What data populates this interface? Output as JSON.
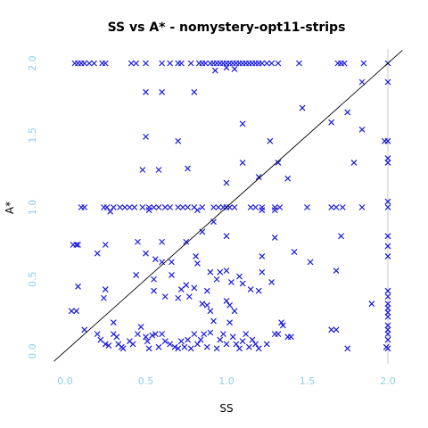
{
  "chart_data": {
    "type": "scatter",
    "title": "SS vs A* - nomystery-opt11-strips",
    "xlabel": "SS",
    "ylabel": "A*",
    "xlim": [
      0,
      2
    ],
    "ylim": [
      0,
      2
    ],
    "xticks": [
      "0.0",
      "0.5",
      "1.0",
      "1.5",
      "2.0"
    ],
    "yticks": [
      "0.0",
      "0.5",
      "1.0",
      "1.5",
      "2.0"
    ],
    "marker": "x",
    "colors": {
      "points": "#1a1adb",
      "ticks": "#8ecfe8",
      "diagonal": "#000000",
      "right_edge": "#c8c8c8"
    },
    "reference_line": "y = x",
    "points": [
      [
        0.06,
        2.0
      ],
      [
        0.08,
        2.0
      ],
      [
        0.1,
        2.0
      ],
      [
        0.12,
        2.0
      ],
      [
        0.15,
        2.0
      ],
      [
        0.18,
        2.0
      ],
      [
        0.23,
        2.0
      ],
      [
        0.25,
        2.0
      ],
      [
        0.41,
        2.0
      ],
      [
        0.44,
        2.0
      ],
      [
        0.5,
        2.0
      ],
      [
        0.6,
        2.0
      ],
      [
        0.65,
        2.0
      ],
      [
        0.7,
        2.0
      ],
      [
        0.72,
        2.0
      ],
      [
        0.78,
        2.0
      ],
      [
        0.83,
        2.0
      ],
      [
        0.85,
        2.0
      ],
      [
        0.87,
        2.0
      ],
      [
        0.9,
        2.0
      ],
      [
        0.92,
        2.0
      ],
      [
        0.94,
        2.0
      ],
      [
        0.96,
        2.0
      ],
      [
        0.98,
        2.0
      ],
      [
        1.0,
        2.0
      ],
      [
        1.02,
        2.0
      ],
      [
        1.04,
        2.0
      ],
      [
        1.06,
        2.0
      ],
      [
        1.08,
        2.0
      ],
      [
        1.1,
        2.0
      ],
      [
        1.12,
        2.0
      ],
      [
        1.14,
        2.0
      ],
      [
        1.16,
        2.0
      ],
      [
        1.18,
        2.0
      ],
      [
        1.2,
        2.0
      ],
      [
        1.22,
        2.0
      ],
      [
        1.25,
        2.0
      ],
      [
        1.28,
        2.0
      ],
      [
        1.32,
        2.0
      ],
      [
        1.45,
        2.0
      ],
      [
        1.69,
        2.0
      ],
      [
        1.71,
        2.0
      ],
      [
        1.73,
        2.0
      ],
      [
        1.85,
        2.0
      ],
      [
        2.0,
        2.0
      ],
      [
        0.5,
        1.8
      ],
      [
        0.6,
        1.8
      ],
      [
        0.8,
        1.8
      ],
      [
        0.93,
        1.95
      ],
      [
        1.0,
        1.97
      ],
      [
        1.05,
        1.96
      ],
      [
        1.84,
        1.87
      ],
      [
        2.0,
        1.87
      ],
      [
        1.47,
        1.69
      ],
      [
        1.75,
        1.66
      ],
      [
        1.65,
        1.59
      ],
      [
        1.84,
        1.54
      ],
      [
        1.1,
        1.58
      ],
      [
        0.5,
        1.49
      ],
      [
        0.7,
        1.46
      ],
      [
        1.27,
        1.46
      ],
      [
        1.98,
        1.46
      ],
      [
        2.0,
        1.46
      ],
      [
        0.76,
        1.27
      ],
      [
        0.48,
        1.26
      ],
      [
        0.58,
        1.26
      ],
      [
        1.79,
        1.31
      ],
      [
        1.32,
        1.31
      ],
      [
        1.1,
        1.31
      ],
      [
        2.0,
        1.34
      ],
      [
        2.0,
        1.31
      ],
      [
        1.2,
        1.21
      ],
      [
        1.38,
        1.2
      ],
      [
        1.0,
        1.17
      ],
      [
        0.1,
        1.0
      ],
      [
        0.12,
        1.0
      ],
      [
        0.24,
        1.0
      ],
      [
        0.26,
        1.0
      ],
      [
        0.3,
        1.0
      ],
      [
        0.34,
        1.0
      ],
      [
        0.37,
        1.0
      ],
      [
        0.4,
        1.0
      ],
      [
        0.43,
        1.0
      ],
      [
        0.48,
        1.0
      ],
      [
        0.52,
        1.0
      ],
      [
        0.55,
        1.0
      ],
      [
        0.58,
        1.0
      ],
      [
        0.62,
        1.0
      ],
      [
        0.65,
        1.0
      ],
      [
        0.7,
        1.0
      ],
      [
        0.73,
        1.0
      ],
      [
        0.76,
        1.0
      ],
      [
        0.8,
        1.0
      ],
      [
        0.85,
        1.0
      ],
      [
        0.92,
        1.0
      ],
      [
        0.95,
        1.0
      ],
      [
        0.98,
        1.0
      ],
      [
        1.0,
        1.0
      ],
      [
        1.02,
        1.0
      ],
      [
        1.05,
        1.0
      ],
      [
        1.15,
        1.0
      ],
      [
        1.18,
        1.0
      ],
      [
        1.22,
        1.0
      ],
      [
        1.3,
        1.0
      ],
      [
        1.33,
        1.0
      ],
      [
        1.5,
        1.0
      ],
      [
        1.65,
        1.0
      ],
      [
        1.68,
        1.0
      ],
      [
        1.72,
        1.0
      ],
      [
        1.84,
        1.0
      ],
      [
        2.0,
        1.0
      ],
      [
        0.28,
        0.97
      ],
      [
        0.52,
        0.98
      ],
      [
        0.82,
        0.98
      ],
      [
        1.22,
        0.98
      ],
      [
        1.3,
        0.98
      ],
      [
        2.0,
        1.04
      ],
      [
        0.05,
        0.74
      ],
      [
        0.07,
        0.74
      ],
      [
        0.08,
        0.74
      ],
      [
        0.25,
        0.74
      ],
      [
        0.45,
        0.76
      ],
      [
        0.6,
        0.76
      ],
      [
        0.2,
        0.68
      ],
      [
        0.5,
        0.68
      ],
      [
        0.56,
        0.64
      ],
      [
        0.6,
        0.62
      ],
      [
        0.66,
        0.62
      ],
      [
        0.75,
        0.76
      ],
      [
        0.81,
        0.66
      ],
      [
        0.85,
        0.83
      ],
      [
        0.92,
        0.9
      ],
      [
        1.0,
        0.8
      ],
      [
        1.22,
        0.66
      ],
      [
        1.3,
        0.79
      ],
      [
        1.42,
        0.69
      ],
      [
        1.52,
        0.62
      ],
      [
        1.71,
        0.8
      ],
      [
        2.0,
        0.8
      ],
      [
        2.0,
        0.73
      ],
      [
        2.0,
        0.66
      ],
      [
        0.08,
        0.45
      ],
      [
        0.04,
        0.28
      ],
      [
        0.07,
        0.28
      ],
      [
        0.25,
        0.43
      ],
      [
        0.24,
        0.37
      ],
      [
        0.44,
        0.53
      ],
      [
        0.55,
        0.5
      ],
      [
        0.66,
        0.53
      ],
      [
        0.72,
        0.43
      ],
      [
        0.75,
        0.46
      ],
      [
        0.8,
        0.44
      ],
      [
        0.82,
        0.61
      ],
      [
        0.88,
        0.42
      ],
      [
        0.9,
        0.55
      ],
      [
        0.94,
        0.5
      ],
      [
        0.96,
        0.55
      ],
      [
        1.0,
        0.56
      ],
      [
        1.03,
        0.48
      ],
      [
        1.08,
        0.52
      ],
      [
        1.1,
        0.47
      ],
      [
        1.15,
        0.43
      ],
      [
        1.2,
        0.42
      ],
      [
        1.22,
        0.55
      ],
      [
        1.28,
        0.48
      ],
      [
        1.0,
        0.35
      ],
      [
        1.02,
        0.32
      ],
      [
        1.05,
        0.28
      ],
      [
        0.85,
        0.33
      ],
      [
        0.88,
        0.32
      ],
      [
        0.9,
        0.28
      ],
      [
        0.77,
        0.38
      ],
      [
        0.7,
        0.37
      ],
      [
        0.62,
        0.38
      ],
      [
        0.55,
        0.42
      ],
      [
        1.3,
        0.12
      ],
      [
        1.32,
        0.12
      ],
      [
        1.68,
        0.56
      ],
      [
        1.9,
        0.33
      ],
      [
        2.0,
        0.42
      ],
      [
        2.0,
        0.38
      ],
      [
        2.0,
        0.33
      ],
      [
        2.0,
        0.3
      ],
      [
        2.0,
        0.27
      ],
      [
        2.0,
        0.24
      ],
      [
        0.12,
        0.15
      ],
      [
        0.2,
        0.12
      ],
      [
        0.22,
        0.08
      ],
      [
        0.25,
        0.05
      ],
      [
        0.27,
        0.04
      ],
      [
        0.3,
        0.12
      ],
      [
        0.3,
        0.2
      ],
      [
        0.32,
        0.1
      ],
      [
        0.33,
        0.05
      ],
      [
        0.35,
        0.03
      ],
      [
        0.36,
        0.02
      ],
      [
        0.4,
        0.07
      ],
      [
        0.42,
        0.05
      ],
      [
        0.45,
        0.12
      ],
      [
        0.47,
        0.17
      ],
      [
        0.5,
        0.1
      ],
      [
        0.51,
        0.07
      ],
      [
        0.52,
        0.02
      ],
      [
        0.54,
        0.11
      ],
      [
        0.56,
        0.12
      ],
      [
        0.58,
        0.03
      ],
      [
        0.6,
        0.12
      ],
      [
        0.62,
        0.07
      ],
      [
        0.65,
        0.05
      ],
      [
        0.68,
        0.03
      ],
      [
        0.7,
        0.02
      ],
      [
        0.72,
        0.07
      ],
      [
        0.74,
        0.03
      ],
      [
        0.76,
        0.08
      ],
      [
        0.78,
        0.02
      ],
      [
        0.8,
        0.12
      ],
      [
        0.82,
        0.05
      ],
      [
        0.84,
        0.08
      ],
      [
        0.86,
        0.12
      ],
      [
        0.88,
        0.03
      ],
      [
        0.9,
        0.13
      ],
      [
        0.92,
        0.21
      ],
      [
        0.94,
        0.02
      ],
      [
        0.96,
        0.08
      ],
      [
        0.98,
        0.12
      ],
      [
        1.0,
        0.05
      ],
      [
        1.02,
        0.2
      ],
      [
        1.04,
        0.1
      ],
      [
        1.06,
        0.05
      ],
      [
        1.08,
        0.02
      ],
      [
        1.1,
        0.07
      ],
      [
        1.12,
        0.12
      ],
      [
        1.14,
        0.03
      ],
      [
        1.16,
        0.08
      ],
      [
        1.18,
        0.05
      ],
      [
        1.2,
        0.02
      ],
      [
        1.25,
        0.05
      ],
      [
        1.34,
        0.2
      ],
      [
        1.35,
        0.18
      ],
      [
        1.38,
        0.1
      ],
      [
        1.4,
        0.1
      ],
      [
        1.65,
        0.15
      ],
      [
        1.68,
        0.15
      ],
      [
        1.75,
        0.02
      ],
      [
        2.0,
        0.18
      ],
      [
        2.0,
        0.15
      ],
      [
        2.0,
        0.12
      ],
      [
        2.0,
        0.08
      ],
      [
        2.0,
        0.02
      ],
      [
        1.99,
        0.03
      ]
    ]
  }
}
